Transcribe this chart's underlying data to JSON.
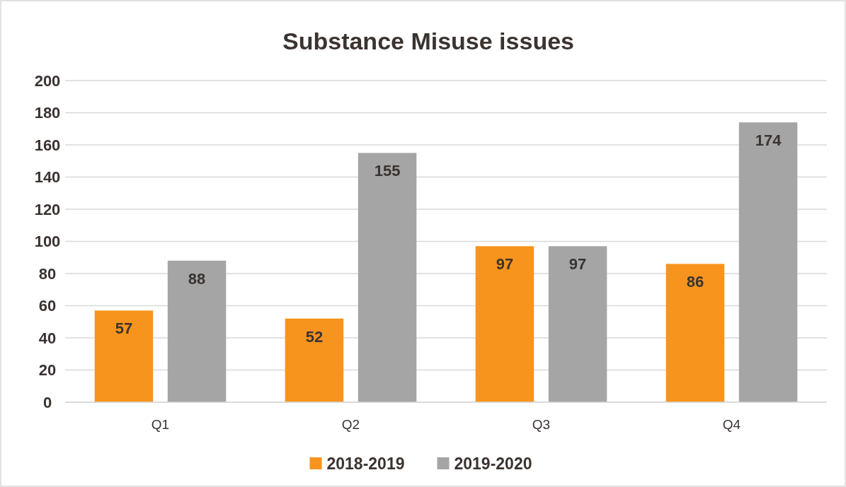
{
  "chart_data": {
    "type": "bar",
    "title": "Substance Misuse issues",
    "categories": [
      "Q1",
      "Q2",
      "Q3",
      "Q4"
    ],
    "series": [
      {
        "name": "2018-2019",
        "color": "#f7941d",
        "values": [
          57,
          52,
          97,
          86
        ]
      },
      {
        "name": "2019-2020",
        "color": "#a5a5a5",
        "values": [
          88,
          155,
          97,
          174
        ]
      }
    ],
    "ylim": [
      0,
      200
    ],
    "yticks": [
      0,
      20,
      40,
      60,
      80,
      100,
      120,
      140,
      160,
      180,
      200
    ],
    "grid": "y",
    "legend": "bottom",
    "data_labels": true
  }
}
